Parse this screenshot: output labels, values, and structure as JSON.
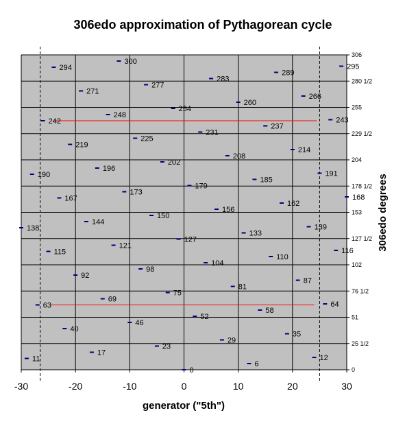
{
  "chart_data": {
    "type": "scatter",
    "title": "306edo approximation of Pythagorean cycle",
    "xlabel": "generator (\"5th\")",
    "ylabel": "306edo degrees",
    "xlim": [
      -30,
      30
    ],
    "ylim": [
      0,
      306
    ],
    "xticks": [
      -30,
      -20,
      -10,
      0,
      10,
      20,
      30
    ],
    "x_tick_labels": [
      "-30",
      "-20",
      "-10",
      "0",
      "10",
      "20",
      "30"
    ],
    "yticks": [
      0,
      25.5,
      51,
      76.5,
      102,
      127.5,
      153,
      178.5,
      204,
      229.5,
      255,
      280.5,
      306
    ],
    "y_tick_labels": [
      "0",
      "25 1/2",
      "51",
      "76 1/2",
      "102",
      "127 1/2",
      "153",
      "178 1/2",
      "204",
      "229 1/2",
      "255",
      "280 1/2",
      "306"
    ],
    "grid": true,
    "plot_background": "#c0c0c0",
    "marker_color": "#000080",
    "line_color": "#ff0000",
    "points": [
      {
        "x": -30,
        "y": 138,
        "label": "138"
      },
      {
        "x": -29,
        "y": 11,
        "label": "11"
      },
      {
        "x": -28,
        "y": 190,
        "label": "190"
      },
      {
        "x": -27,
        "y": 63,
        "label": "63"
      },
      {
        "x": -26,
        "y": 242,
        "label": "242"
      },
      {
        "x": -25,
        "y": 115,
        "label": "115"
      },
      {
        "x": -24,
        "y": 294,
        "label": "294"
      },
      {
        "x": -23,
        "y": 167,
        "label": "167"
      },
      {
        "x": -22,
        "y": 40,
        "label": "40"
      },
      {
        "x": -21,
        "y": 219,
        "label": "219"
      },
      {
        "x": -20,
        "y": 92,
        "label": "92"
      },
      {
        "x": -19,
        "y": 271,
        "label": "271"
      },
      {
        "x": -18,
        "y": 144,
        "label": "144"
      },
      {
        "x": -17,
        "y": 17,
        "label": "17"
      },
      {
        "x": -16,
        "y": 196,
        "label": "196"
      },
      {
        "x": -15,
        "y": 69,
        "label": "69"
      },
      {
        "x": -14,
        "y": 248,
        "label": "248"
      },
      {
        "x": -13,
        "y": 121,
        "label": "121"
      },
      {
        "x": -12,
        "y": 300,
        "label": "300"
      },
      {
        "x": -11,
        "y": 173,
        "label": "173"
      },
      {
        "x": -10,
        "y": 46,
        "label": "46"
      },
      {
        "x": -9,
        "y": 225,
        "label": "225"
      },
      {
        "x": -8,
        "y": 98,
        "label": "98"
      },
      {
        "x": -7,
        "y": 277,
        "label": "277"
      },
      {
        "x": -6,
        "y": 150,
        "label": "150"
      },
      {
        "x": -5,
        "y": 23,
        "label": "23"
      },
      {
        "x": -4,
        "y": 202,
        "label": "202"
      },
      {
        "x": -3,
        "y": 75,
        "label": "75"
      },
      {
        "x": -2,
        "y": 254,
        "label": "254"
      },
      {
        "x": -1,
        "y": 127,
        "label": "127"
      },
      {
        "x": 0,
        "y": 0,
        "label": "0"
      },
      {
        "x": 1,
        "y": 179,
        "label": "179"
      },
      {
        "x": 2,
        "y": 52,
        "label": "52"
      },
      {
        "x": 3,
        "y": 231,
        "label": "231"
      },
      {
        "x": 4,
        "y": 104,
        "label": "104"
      },
      {
        "x": 5,
        "y": 283,
        "label": "283"
      },
      {
        "x": 6,
        "y": 156,
        "label": "156"
      },
      {
        "x": 7,
        "y": 29,
        "label": "29"
      },
      {
        "x": 8,
        "y": 208,
        "label": "208"
      },
      {
        "x": 9,
        "y": 81,
        "label": "81"
      },
      {
        "x": 10,
        "y": 260,
        "label": "260"
      },
      {
        "x": 11,
        "y": 133,
        "label": "133"
      },
      {
        "x": 12,
        "y": 6,
        "label": "6"
      },
      {
        "x": 13,
        "y": 185,
        "label": "185"
      },
      {
        "x": 14,
        "y": 58,
        "label": "58"
      },
      {
        "x": 15,
        "y": 237,
        "label": "237"
      },
      {
        "x": 16,
        "y": 110,
        "label": "110"
      },
      {
        "x": 17,
        "y": 289,
        "label": "289"
      },
      {
        "x": 18,
        "y": 162,
        "label": "162"
      },
      {
        "x": 19,
        "y": 35,
        "label": "35"
      },
      {
        "x": 20,
        "y": 214,
        "label": "214"
      },
      {
        "x": 21,
        "y": 87,
        "label": "87"
      },
      {
        "x": 22,
        "y": 266,
        "label": "266"
      },
      {
        "x": 23,
        "y": 139,
        "label": "139"
      },
      {
        "x": 24,
        "y": 12,
        "label": "12"
      },
      {
        "x": 25,
        "y": 191,
        "label": "191"
      },
      {
        "x": 26,
        "y": 64,
        "label": "64"
      },
      {
        "x": 27,
        "y": 243,
        "label": "243"
      },
      {
        "x": 28,
        "y": 116,
        "label": "116"
      },
      {
        "x": 29,
        "y": 295,
        "label": "295"
      },
      {
        "x": 30,
        "y": 168,
        "label": "168"
      }
    ],
    "vertical_dashed_lines_x": [
      -26.5,
      25
    ],
    "horizontal_red_lines": [
      {
        "y": 242,
        "x_from": -24,
        "x_to": 24.5
      },
      {
        "y": 63,
        "x_from": -24.5,
        "x_to": 24
      }
    ]
  }
}
